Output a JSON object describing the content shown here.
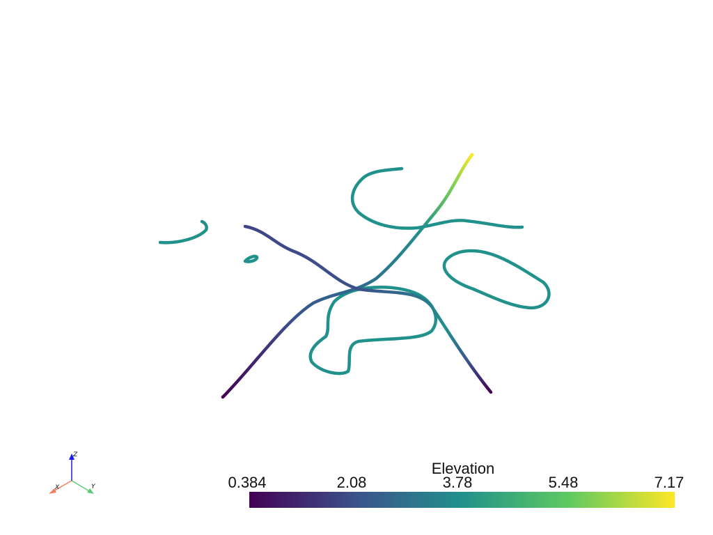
{
  "colorbar": {
    "title": "Elevation",
    "ticks": [
      "0.384",
      "2.08",
      "3.78",
      "5.48",
      "7.17"
    ],
    "colormap": "viridis",
    "colors": [
      "#440154",
      "#3b528b",
      "#21918c",
      "#5ec962",
      "#fde725"
    ]
  },
  "axes_widget": {
    "x_label": "X",
    "y_label": "Y",
    "z_label": "Z",
    "x_color": "#f08060",
    "y_color": "#5cc878",
    "z_color": "#1a1aee"
  }
}
